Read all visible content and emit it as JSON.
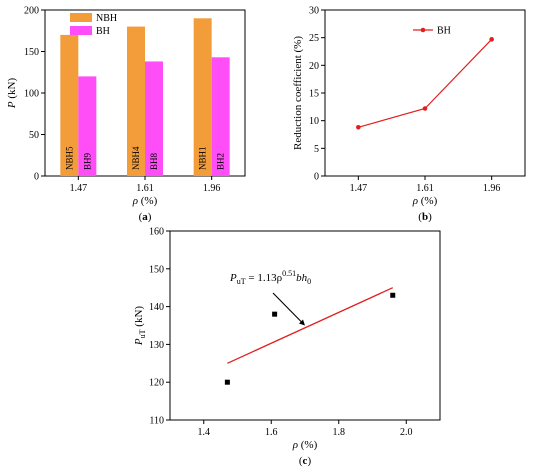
{
  "chart_data": [
    {
      "type": "bar",
      "panel": "(a)",
      "categories": [
        "1.47",
        "1.61",
        "1.96"
      ],
      "series": [
        {
          "name": "NBH",
          "values": [
            170,
            180,
            190
          ],
          "color": "#f39c3a",
          "bar_labels": [
            "NBH5",
            "NBH4",
            "NBH1"
          ]
        },
        {
          "name": "BH",
          "values": [
            120,
            138,
            143
          ],
          "color": "#ff4df7",
          "bar_labels": [
            "BH9",
            "BH8",
            "BH2"
          ]
        }
      ],
      "xlabel": {
        "symbol": "ρ",
        "unit": "(%)"
      },
      "ylabel": {
        "symbol": "P",
        "unit": "(kN)"
      },
      "ylim": [
        0,
        200
      ],
      "yticks": [
        "0",
        "50",
        "100",
        "150",
        "200"
      ],
      "legend_position": "top-left"
    },
    {
      "type": "line",
      "panel": "(b)",
      "x": [
        "1.47",
        "1.61",
        "1.96"
      ],
      "series": [
        {
          "name": "BH",
          "values": [
            8.8,
            12.2,
            24.7
          ],
          "color": "#e02020"
        }
      ],
      "xlabel": {
        "symbol": "ρ",
        "unit": "(%)"
      },
      "ylabel": "Reduction coefficient (%)",
      "ylim": [
        0,
        30
      ],
      "yticks": [
        "0",
        "5",
        "10",
        "15",
        "20",
        "25",
        "30"
      ],
      "legend_position": "top-left"
    },
    {
      "type": "scatter",
      "panel": "(c)",
      "points": [
        {
          "x": 1.47,
          "y": 120
        },
        {
          "x": 1.61,
          "y": 138
        },
        {
          "x": 1.96,
          "y": 143
        }
      ],
      "fit_line": {
        "x": [
          1.47,
          1.96
        ],
        "y": [
          125,
          145
        ],
        "color": "#e02020"
      },
      "annotation": {
        "lhs": "P",
        "lhs_sub": "uT",
        "rhs": "= 1.13ρ",
        "rhs_sup": "0.51",
        "tail": "bh",
        "tail_sub": "0"
      },
      "arrow_target": {
        "x": 1.7,
        "y": 135
      },
      "xlabel": {
        "symbol": "ρ",
        "unit": "(%)"
      },
      "ylabel": {
        "symbol": "P",
        "sub": "uT",
        "unit": "(kN)"
      },
      "xlim": [
        1.3,
        2.1
      ],
      "ylim": [
        110,
        160
      ],
      "xticks": [
        "1.4",
        "1.6",
        "1.8",
        "2.0"
      ],
      "yticks": [
        "110",
        "120",
        "130",
        "140",
        "150",
        "160"
      ]
    }
  ]
}
